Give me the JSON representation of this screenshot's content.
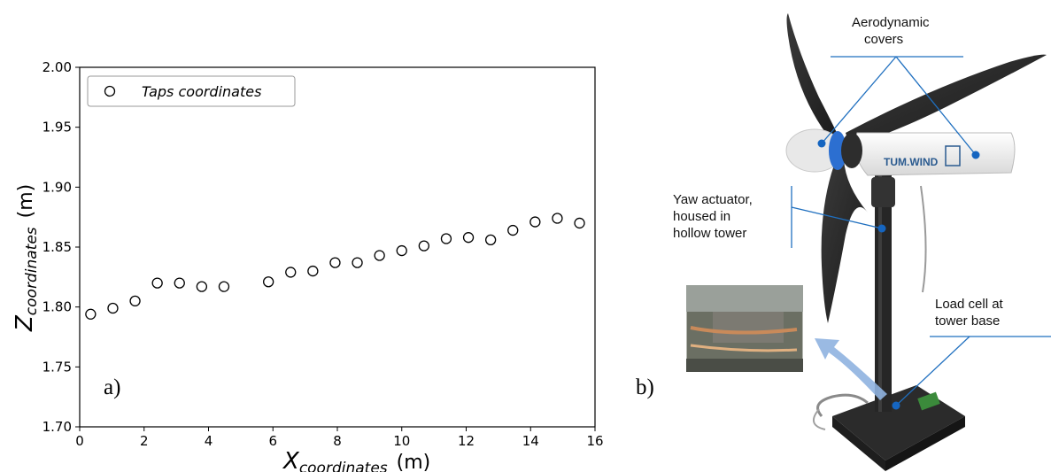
{
  "panels": {
    "a_label": "a)",
    "b_label": "b)"
  },
  "chart_data": {
    "type": "scatter",
    "legend": {
      "entry": "Taps coordinates",
      "placement": "top-left"
    },
    "xlabel": {
      "base": "X",
      "sub": "coordinates",
      "unit": "(m)"
    },
    "ylabel": {
      "base": "Z",
      "sub": "coordinates",
      "unit": "(m)"
    },
    "xlim": [
      0,
      16
    ],
    "ylim": [
      1.7,
      2.0
    ],
    "xticks": [
      "0",
      "2",
      "4",
      "6",
      "8",
      "10",
      "12",
      "14",
      "16"
    ],
    "yticks": [
      "1.70",
      "1.75",
      "1.80",
      "1.85",
      "1.90",
      "1.95",
      "2.00"
    ],
    "grid": false,
    "marker": "open-circle",
    "points": [
      {
        "x": 0.34,
        "y": 1.794
      },
      {
        "x": 1.03,
        "y": 1.799
      },
      {
        "x": 1.72,
        "y": 1.805
      },
      {
        "x": 2.41,
        "y": 1.82
      },
      {
        "x": 3.1,
        "y": 1.82
      },
      {
        "x": 3.79,
        "y": 1.817
      },
      {
        "x": 4.48,
        "y": 1.817
      },
      {
        "x": 5.86,
        "y": 1.821
      },
      {
        "x": 6.55,
        "y": 1.829
      },
      {
        "x": 7.24,
        "y": 1.83
      },
      {
        "x": 7.93,
        "y": 1.837
      },
      {
        "x": 8.62,
        "y": 1.837
      },
      {
        "x": 9.31,
        "y": 1.843
      },
      {
        "x": 10.0,
        "y": 1.847
      },
      {
        "x": 10.69,
        "y": 1.851
      },
      {
        "x": 11.38,
        "y": 1.857
      },
      {
        "x": 12.07,
        "y": 1.858
      },
      {
        "x": 12.76,
        "y": 1.856
      },
      {
        "x": 13.45,
        "y": 1.864
      },
      {
        "x": 14.14,
        "y": 1.871
      },
      {
        "x": 14.83,
        "y": 1.874
      },
      {
        "x": 15.52,
        "y": 1.87
      }
    ]
  },
  "photo": {
    "annotations": {
      "aero_line1": "Aerodynamic",
      "aero_line2": "covers",
      "yaw_line1": "Yaw actuator,",
      "yaw_line2": "housed in",
      "yaw_line3": "hollow tower",
      "load_line1": "Load cell at",
      "load_line2": "tower base"
    },
    "brand": "TUM.WIND",
    "colors": {
      "callout": "#1f6fbf",
      "dot": "#1565c0",
      "arrow": "#8fb3e0"
    }
  }
}
